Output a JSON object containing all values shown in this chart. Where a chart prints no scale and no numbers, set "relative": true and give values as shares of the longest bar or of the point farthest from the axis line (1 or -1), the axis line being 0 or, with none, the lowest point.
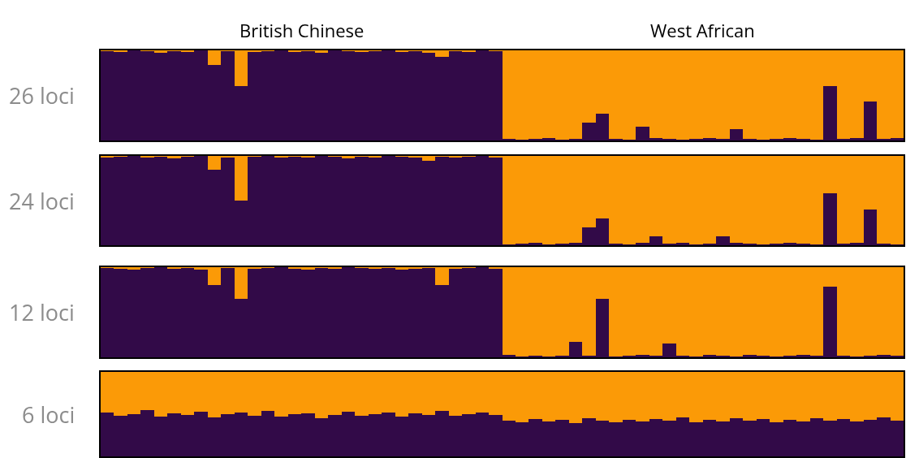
{
  "chart_data": [
    {
      "type": "bar",
      "stacked": true,
      "relative": true,
      "ylabel": "26 loci",
      "annotations": [
        "British Chinese",
        "West African"
      ],
      "tick_labels": false,
      "categories": [
        null,
        null,
        null,
        null,
        null,
        null,
        null,
        null,
        null,
        null,
        null,
        null,
        null,
        null,
        null,
        null,
        null,
        null,
        null,
        null,
        null,
        null,
        null,
        null,
        null,
        null,
        null,
        null,
        null,
        null,
        null,
        null,
        null,
        null,
        null,
        null,
        null,
        null,
        null,
        null,
        null,
        null,
        null,
        null,
        null,
        null,
        null,
        null,
        null,
        null,
        null,
        null,
        null,
        null,
        null,
        null,
        null,
        null,
        null,
        null
      ],
      "series": [
        {
          "color": "#320a48",
          "values": [
            0.99,
            0.98,
            1,
            0.99,
            0.97,
            0.99,
            0.98,
            1,
            0.84,
            0.99,
            0.6,
            0.98,
            0.99,
            1,
            0.98,
            0.99,
            0.97,
            1,
            0.99,
            0.98,
            0.99,
            1,
            0.98,
            0.99,
            0.97,
            0.93,
            0.99,
            0.98,
            1,
            0.99,
            0.02,
            0.01,
            0.02,
            0.03,
            0.01,
            0.02,
            0.2,
            0.3,
            0.02,
            0.01,
            0.15,
            0.03,
            0.02,
            0.01,
            0.02,
            0.03,
            0.02,
            0.13,
            0.02,
            0.01,
            0.02,
            0.03,
            0.02,
            0.01,
            0.6,
            0.02,
            0.03,
            0.43,
            0.02,
            0.03
          ]
        },
        {
          "color": "#fb9a07",
          "values": [
            0.01,
            0.02,
            0,
            0.01,
            0.03,
            0.01,
            0.02,
            0,
            0.16,
            0.01,
            0.4,
            0.02,
            0.01,
            0,
            0.02,
            0.01,
            0.03,
            0,
            0.01,
            0.02,
            0.01,
            0,
            0.02,
            0.01,
            0.03,
            0.07,
            0.01,
            0.02,
            0,
            0.01,
            0.98,
            0.99,
            0.98,
            0.97,
            0.99,
            0.98,
            0.8,
            0.7,
            0.98,
            0.99,
            0.85,
            0.97,
            0.98,
            0.99,
            0.98,
            0.97,
            0.98,
            0.87,
            0.98,
            0.99,
            0.98,
            0.97,
            0.98,
            0.99,
            0.4,
            0.98,
            0.97,
            0.57,
            0.98,
            0.97
          ]
        }
      ]
    },
    {
      "type": "bar",
      "stacked": true,
      "relative": true,
      "ylabel": "24 loci",
      "tick_labels": false,
      "categories": [
        null,
        null,
        null,
        null,
        null,
        null,
        null,
        null,
        null,
        null,
        null,
        null,
        null,
        null,
        null,
        null,
        null,
        null,
        null,
        null,
        null,
        null,
        null,
        null,
        null,
        null,
        null,
        null,
        null,
        null,
        null,
        null,
        null,
        null,
        null,
        null,
        null,
        null,
        null,
        null,
        null,
        null,
        null,
        null,
        null,
        null,
        null,
        null,
        null,
        null,
        null,
        null,
        null,
        null,
        null,
        null,
        null,
        null,
        null,
        null
      ],
      "series": [
        {
          "color": "#320a48",
          "values": [
            0.98,
            0.99,
            1,
            0.98,
            0.99,
            0.97,
            0.99,
            1,
            0.85,
            0.98,
            0.5,
            0.99,
            1,
            0.98,
            0.99,
            0.98,
            1,
            0.99,
            0.97,
            0.99,
            0.98,
            1,
            0.99,
            0.98,
            0.95,
            0.99,
            0.98,
            0.99,
            1,
            0.98,
            0.01,
            0.02,
            0.03,
            0.01,
            0.02,
            0.03,
            0.2,
            0.3,
            0.02,
            0.01,
            0.03,
            0.1,
            0.02,
            0.03,
            0.01,
            0.02,
            0.1,
            0.03,
            0.02,
            0.01,
            0.02,
            0.03,
            0.02,
            0.01,
            0.58,
            0.02,
            0.03,
            0.4,
            0.02,
            0.01
          ]
        },
        {
          "color": "#fb9a07",
          "values": [
            0.02,
            0.01,
            0,
            0.02,
            0.01,
            0.03,
            0.01,
            0,
            0.15,
            0.02,
            0.5,
            0.01,
            0,
            0.02,
            0.01,
            0.02,
            0,
            0.01,
            0.03,
            0.01,
            0.02,
            0,
            0.01,
            0.02,
            0.05,
            0.01,
            0.02,
            0.01,
            0,
            0.02,
            0.99,
            0.98,
            0.97,
            0.99,
            0.98,
            0.97,
            0.8,
            0.7,
            0.98,
            0.99,
            0.97,
            0.9,
            0.98,
            0.97,
            0.99,
            0.98,
            0.9,
            0.97,
            0.98,
            0.99,
            0.98,
            0.97,
            0.98,
            0.99,
            0.42,
            0.98,
            0.97,
            0.6,
            0.98,
            0.99
          ]
        }
      ]
    },
    {
      "type": "bar",
      "stacked": true,
      "relative": true,
      "ylabel": "12 loci",
      "tick_labels": false,
      "categories": [
        null,
        null,
        null,
        null,
        null,
        null,
        null,
        null,
        null,
        null,
        null,
        null,
        null,
        null,
        null,
        null,
        null,
        null,
        null,
        null,
        null,
        null,
        null,
        null,
        null,
        null,
        null,
        null,
        null,
        null,
        null,
        null,
        null,
        null,
        null,
        null,
        null,
        null,
        null,
        null,
        null,
        null,
        null,
        null,
        null,
        null,
        null,
        null,
        null,
        null,
        null,
        null,
        null,
        null,
        null,
        null,
        null,
        null,
        null,
        null
      ],
      "series": [
        {
          "color": "#320a48",
          "values": [
            0.99,
            0.98,
            0.97,
            0.99,
            1,
            0.98,
            0.99,
            0.97,
            0.8,
            0.99,
            0.65,
            0.98,
            0.99,
            1,
            0.98,
            0.97,
            0.99,
            0.98,
            1,
            0.99,
            0.98,
            0.99,
            0.97,
            0.98,
            0.99,
            0.8,
            0.98,
            0.99,
            1,
            0.98,
            0.03,
            0.01,
            0.02,
            0.01,
            0.02,
            0.17,
            0.02,
            0.65,
            0.01,
            0.02,
            0.03,
            0.02,
            0.15,
            0.02,
            0.01,
            0.03,
            0.02,
            0.01,
            0.03,
            0.02,
            0.01,
            0.02,
            0.03,
            0.02,
            0.78,
            0.02,
            0.01,
            0.02,
            0.03,
            0.02
          ]
        },
        {
          "color": "#fb9a07",
          "values": [
            0.01,
            0.02,
            0.03,
            0.01,
            0,
            0.02,
            0.01,
            0.03,
            0.2,
            0.01,
            0.35,
            0.02,
            0.01,
            0,
            0.02,
            0.03,
            0.01,
            0.02,
            0,
            0.01,
            0.02,
            0.01,
            0.03,
            0.02,
            0.01,
            0.2,
            0.02,
            0.01,
            0,
            0.02,
            0.97,
            0.99,
            0.98,
            0.99,
            0.98,
            0.83,
            0.98,
            0.35,
            0.99,
            0.98,
            0.97,
            0.98,
            0.85,
            0.98,
            0.99,
            0.97,
            0.98,
            0.99,
            0.97,
            0.98,
            0.99,
            0.98,
            0.97,
            0.98,
            0.22,
            0.98,
            0.99,
            0.98,
            0.97,
            0.98
          ]
        }
      ]
    },
    {
      "type": "bar",
      "stacked": true,
      "relative": true,
      "ylabel": "6 loci",
      "tick_labels": false,
      "categories": [
        null,
        null,
        null,
        null,
        null,
        null,
        null,
        null,
        null,
        null,
        null,
        null,
        null,
        null,
        null,
        null,
        null,
        null,
        null,
        null,
        null,
        null,
        null,
        null,
        null,
        null,
        null,
        null,
        null,
        null,
        null,
        null,
        null,
        null,
        null,
        null,
        null,
        null,
        null,
        null,
        null,
        null,
        null,
        null,
        null,
        null,
        null,
        null,
        null,
        null,
        null,
        null,
        null,
        null,
        null,
        null,
        null,
        null,
        null,
        null
      ],
      "series": [
        {
          "color": "#320a48",
          "values": [
            0.52,
            0.48,
            0.5,
            0.55,
            0.47,
            0.51,
            0.49,
            0.53,
            0.46,
            0.5,
            0.52,
            0.48,
            0.54,
            0.47,
            0.5,
            0.51,
            0.45,
            0.49,
            0.53,
            0.48,
            0.5,
            0.52,
            0.47,
            0.51,
            0.49,
            0.54,
            0.48,
            0.5,
            0.52,
            0.49,
            0.42,
            0.4,
            0.44,
            0.41,
            0.43,
            0.39,
            0.45,
            0.42,
            0.4,
            0.43,
            0.41,
            0.44,
            0.42,
            0.46,
            0.4,
            0.43,
            0.41,
            0.45,
            0.42,
            0.44,
            0.4,
            0.43,
            0.41,
            0.45,
            0.42,
            0.44,
            0.41,
            0.43,
            0.46,
            0.42
          ]
        },
        {
          "color": "#fb9a07",
          "values": [
            0.48,
            0.52,
            0.5,
            0.45,
            0.53,
            0.49,
            0.51,
            0.47,
            0.54,
            0.5,
            0.48,
            0.52,
            0.46,
            0.53,
            0.5,
            0.49,
            0.55,
            0.51,
            0.47,
            0.52,
            0.5,
            0.48,
            0.53,
            0.49,
            0.51,
            0.46,
            0.52,
            0.5,
            0.48,
            0.51,
            0.58,
            0.6,
            0.56,
            0.59,
            0.57,
            0.61,
            0.55,
            0.58,
            0.6,
            0.57,
            0.59,
            0.56,
            0.58,
            0.54,
            0.6,
            0.57,
            0.59,
            0.55,
            0.58,
            0.56,
            0.6,
            0.57,
            0.59,
            0.55,
            0.58,
            0.56,
            0.59,
            0.57,
            0.54,
            0.58
          ]
        }
      ]
    }
  ]
}
